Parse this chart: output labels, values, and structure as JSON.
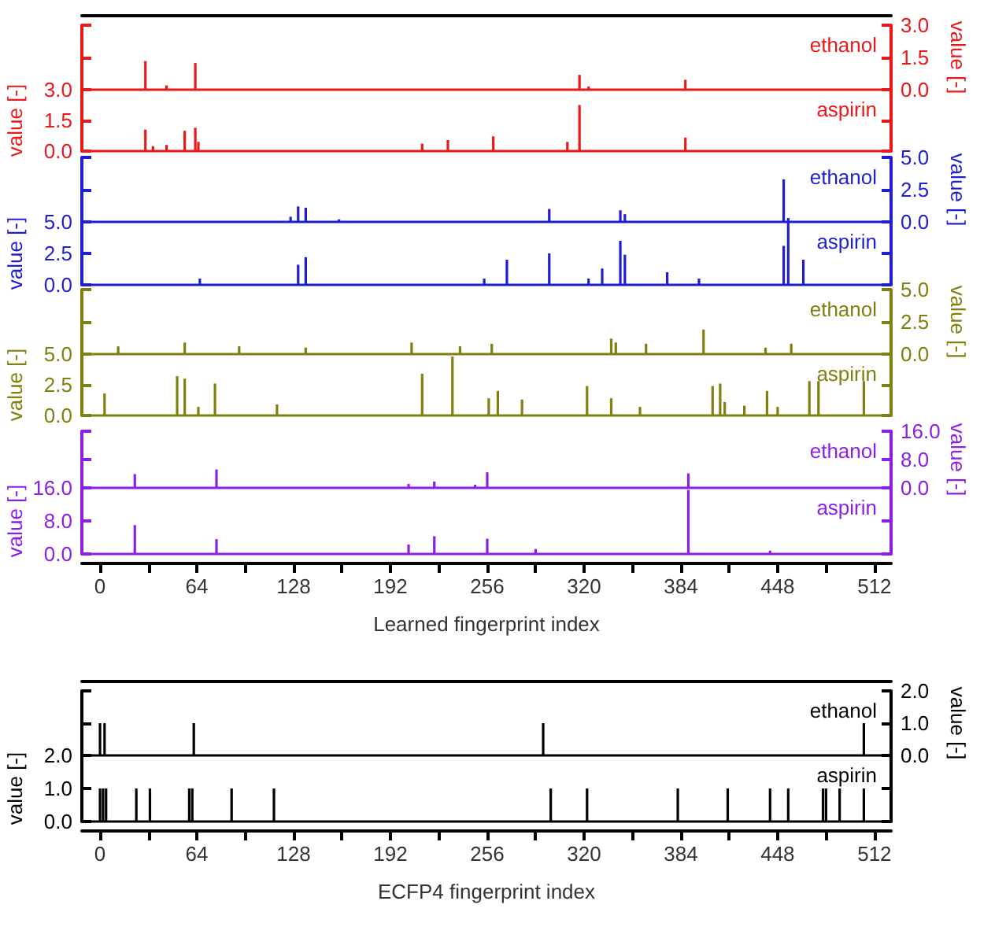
{
  "chart_data": [
    {
      "type": "bar",
      "xlim": [
        -12,
        523
      ],
      "y2lim": [
        0,
        3
      ],
      "y2ticks": [
        {
          "value": 0,
          "label": "0.0"
        },
        {
          "value": 1.5,
          "label": "1.5"
        },
        {
          "value": 3,
          "label": "3.0"
        }
      ],
      "y2label": "value [-]",
      "tick_labels": "y",
      "series": [
        {
          "name": "ethanol",
          "color": "#e8191b",
          "axis": "y2",
          "x": [
            30,
            44,
            63,
            317,
            323,
            387
          ],
          "values": [
            1.33,
            0.2,
            1.24,
            0.69,
            0.15,
            0.46
          ]
        }
      ]
    },
    {
      "type": "bar",
      "xlim": [
        -12,
        523
      ],
      "ylim": [
        0,
        3
      ],
      "yticks": [
        {
          "value": 0,
          "label": "0.0"
        },
        {
          "value": 1.5,
          "label": "1.5"
        },
        {
          "value": 3,
          "label": "3.0"
        }
      ],
      "ylabel": "value [-]",
      "tick_labels": "y",
      "series": [
        {
          "name": "aspirin",
          "color": "#e8191b",
          "x": [
            30,
            35,
            44,
            56,
            63,
            65,
            213,
            230,
            260,
            309,
            317,
            387
          ],
          "values": [
            1.05,
            0.24,
            0.3,
            0.99,
            1.14,
            0.45,
            0.36,
            0.54,
            0.72,
            0.45,
            2.25,
            0.66
          ]
        }
      ]
    },
    {
      "type": "bar",
      "xlim": [
        -12,
        523
      ],
      "y2lim": [
        0,
        5
      ],
      "y2ticks": [
        {
          "value": 0,
          "label": "0.0"
        },
        {
          "value": 2.5,
          "label": "2.5"
        },
        {
          "value": 5,
          "label": "5.0"
        }
      ],
      "y2label": "value [-]",
      "tick_labels": "y",
      "series": [
        {
          "name": "ethanol",
          "color": "#1f1fd0",
          "axis": "y2",
          "x": [
            126,
            131,
            136,
            158,
            297,
            344,
            347,
            452,
            455
          ],
          "values": [
            0.4,
            1.2,
            1.1,
            0.2,
            1.0,
            0.9,
            0.6,
            3.3,
            0.3
          ]
        }
      ]
    },
    {
      "type": "bar",
      "xlim": [
        -12,
        523
      ],
      "ylim": [
        0,
        5
      ],
      "yticks": [
        {
          "value": 0,
          "label": "0.0"
        },
        {
          "value": 2.5,
          "label": "2.5"
        },
        {
          "value": 5,
          "label": "5.0"
        }
      ],
      "ylabel": "value [-]",
      "tick_labels": "y",
      "series": [
        {
          "name": "aspirin",
          "color": "#1f1fd0",
          "x": [
            66,
            131,
            136,
            254,
            269,
            297,
            323,
            332,
            344,
            347,
            375,
            396,
            452,
            455,
            465
          ],
          "values": [
            0.5,
            1.6,
            2.2,
            0.5,
            2.0,
            2.5,
            0.5,
            1.3,
            3.5,
            2.4,
            1.0,
            0.5,
            3.1,
            5.0,
            2.0
          ]
        }
      ]
    },
    {
      "type": "bar",
      "xlim": [
        -12,
        523
      ],
      "y2lim": [
        0,
        5
      ],
      "y2ticks": [
        {
          "value": 0,
          "label": "0.0"
        },
        {
          "value": 2.5,
          "label": "2.5"
        },
        {
          "value": 5,
          "label": "5.0"
        }
      ],
      "y2label": "value [-]",
      "tick_labels": "y",
      "series": [
        {
          "name": "ethanol",
          "color": "#808010",
          "axis": "y2",
          "x": [
            12,
            56,
            92,
            136,
            206,
            238,
            259,
            338,
            341,
            361,
            399,
            440,
            457
          ],
          "values": [
            0.6,
            0.9,
            0.6,
            0.5,
            0.9,
            0.6,
            0.8,
            1.2,
            0.9,
            0.8,
            1.9,
            0.5,
            0.8
          ]
        }
      ]
    },
    {
      "type": "bar",
      "xlim": [
        -12,
        523
      ],
      "ylim": [
        0,
        5
      ],
      "yticks": [
        {
          "value": 0,
          "label": "0.0"
        },
        {
          "value": 2.5,
          "label": "2.5"
        },
        {
          "value": 5,
          "label": "5.0"
        }
      ],
      "ylabel": "value [-]",
      "tick_labels": "y",
      "series": [
        {
          "name": "aspirin",
          "color": "#808010",
          "x": [
            3,
            51,
            56,
            65,
            76,
            117,
            213,
            233,
            257,
            263,
            279,
            322,
            338,
            357,
            405,
            410,
            413,
            426,
            441,
            448,
            469,
            475,
            505
          ],
          "values": [
            1.8,
            3.2,
            3.0,
            0.7,
            2.6,
            0.9,
            3.4,
            4.8,
            1.4,
            2.0,
            1.3,
            2.4,
            1.4,
            0.7,
            2.4,
            2.6,
            1.1,
            0.8,
            2.0,
            0.7,
            2.8,
            2.8,
            2.8
          ]
        }
      ]
    },
    {
      "type": "bar",
      "xlim": [
        -12,
        523
      ],
      "y2lim": [
        0,
        16
      ],
      "y2ticks": [
        {
          "value": 0,
          "label": "0.0"
        },
        {
          "value": 8,
          "label": "8.0"
        },
        {
          "value": 16,
          "label": "16.0"
        }
      ],
      "y2label": "value [-]",
      "tick_labels": "y",
      "series": [
        {
          "name": "ethanol",
          "color": "#8c1ee6",
          "axis": "y2",
          "x": [
            23,
            77,
            204,
            221,
            248,
            256,
            389
          ],
          "values": [
            3.9,
            5.2,
            1.1,
            1.8,
            0.9,
            4.4,
            4.1
          ]
        }
      ]
    },
    {
      "type": "bar",
      "xlim": [
        -12,
        523
      ],
      "xticks": [
        0,
        {
          "value": 32,
          "label": null
        },
        64,
        {
          "value": 96,
          "label": null
        },
        128,
        {
          "value": 160,
          "label": null
        },
        192,
        {
          "value": 224,
          "label": null
        },
        256,
        {
          "value": 288,
          "label": null
        },
        320,
        {
          "value": 352,
          "label": null
        },
        384,
        {
          "value": 416,
          "label": null
        },
        448,
        {
          "value": 480,
          "label": null
        },
        512
      ],
      "xlabel": "Learned fingerprint index",
      "ylim": [
        0,
        16
      ],
      "yticks": [
        {
          "value": 0,
          "label": "0.0"
        },
        {
          "value": 8,
          "label": "8.0"
        },
        {
          "value": 16,
          "label": "16.0"
        }
      ],
      "ylabel": "value [-]",
      "series": [
        {
          "name": "aspirin",
          "color": "#8c1ee6",
          "x": [
            23,
            77,
            204,
            221,
            256,
            288,
            389,
            443
          ],
          "values": [
            7.0,
            3.6,
            2.3,
            4.3,
            3.7,
            1.2,
            15.5,
            0.8
          ]
        }
      ]
    },
    {
      "type": "bar",
      "xlim": [
        -12,
        523
      ],
      "y2lim": [
        0,
        2
      ],
      "y2ticks": [
        {
          "value": 0,
          "label": "0.0"
        },
        {
          "value": 1,
          "label": "1.0"
        },
        {
          "value": 2,
          "label": "2.0"
        }
      ],
      "y2label": "value [-]",
      "tick_labels": "y",
      "series": [
        {
          "name": "ethanol",
          "color": "#000000",
          "axis": "y2",
          "x": [
            0,
            3,
            62,
            293,
            505
          ],
          "values": [
            1,
            1,
            1,
            1,
            1
          ]
        }
      ]
    },
    {
      "type": "bar",
      "xlim": [
        -12,
        523
      ],
      "xticks": [
        0,
        {
          "value": 32,
          "label": null
        },
        64,
        {
          "value": 96,
          "label": null
        },
        128,
        {
          "value": 160,
          "label": null
        },
        192,
        {
          "value": 224,
          "label": null
        },
        256,
        {
          "value": 288,
          "label": null
        },
        320,
        {
          "value": 352,
          "label": null
        },
        384,
        {
          "value": 416,
          "label": null
        },
        448,
        {
          "value": 480,
          "label": null
        },
        512
      ],
      "xlabel": "ECFP4 fingerprint index",
      "ylim": [
        0,
        2
      ],
      "yticks": [
        {
          "value": 0,
          "label": "0.0"
        },
        {
          "value": 1,
          "label": "1.0"
        },
        {
          "value": 2,
          "label": "2.0"
        }
      ],
      "ylabel": "value [-]",
      "series": [
        {
          "name": "aspirin",
          "color": "#000000",
          "x": [
            0,
            2,
            4,
            24,
            33,
            59,
            61,
            87,
            115,
            298,
            322,
            382,
            415,
            443,
            455,
            478,
            480,
            489,
            505
          ],
          "values": [
            1,
            1,
            1,
            1,
            1,
            1,
            1,
            1,
            1,
            1,
            1,
            1,
            1,
            1,
            1,
            1,
            1,
            1,
            1
          ]
        }
      ]
    }
  ]
}
